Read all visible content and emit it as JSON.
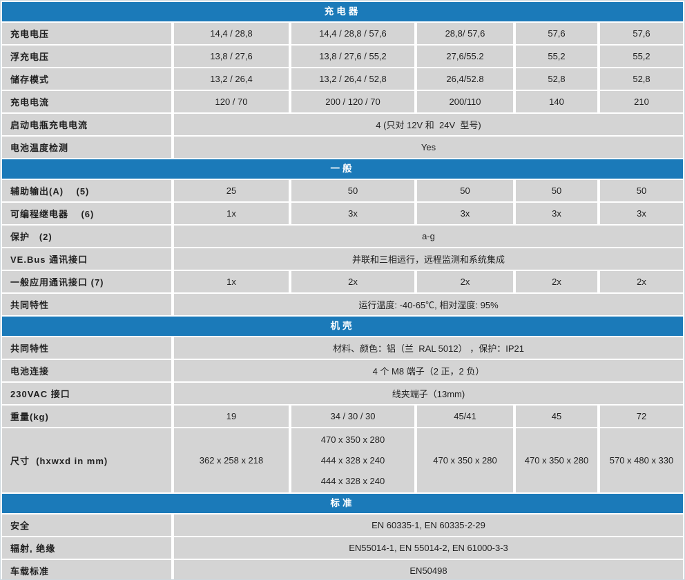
{
  "colors": {
    "header_bg": "#1b7ab9",
    "header_text": "#ffffff",
    "cell_bg": "#d4d4d4",
    "text": "#1f1f1f"
  },
  "sections": [
    {
      "id": "charger",
      "title": "充电器",
      "rows": [
        {
          "label": "充电电压",
          "values": [
            "14,4 / 28,8",
            "14,4 / 28,8 / 57,6",
            "28,8/ 57,6",
            "57,6",
            "57,6"
          ]
        },
        {
          "label": "浮充电压",
          "values": [
            "13,8 / 27,6",
            "13,8 / 27,6 / 55,2",
            "27,6/55.2",
            "55,2",
            "55,2"
          ]
        },
        {
          "label": "储存模式",
          "values": [
            "13,2 / 26,4",
            "13,2 / 26,4 / 52,8",
            "26,4/52.8",
            "52,8",
            "52,8"
          ]
        },
        {
          "label": "充电电流",
          "values": [
            "120 / 70",
            "200 / 120 / 70",
            "200/110",
            "140",
            "210"
          ]
        },
        {
          "label": "启动电瓶充电电流",
          "span": "4 (只对 12V 和  24V  型号)"
        },
        {
          "label": "电池温度检测",
          "span": "Yes"
        }
      ]
    },
    {
      "id": "general",
      "title": "一般",
      "rows": [
        {
          "label": "辅助输出(A)    (5)",
          "values": [
            "25",
            "50",
            "50",
            "50",
            "50"
          ]
        },
        {
          "label": "可编程继电器    (6)",
          "values": [
            "1x",
            "3x",
            "3x",
            "3x",
            "3x"
          ]
        },
        {
          "label": "保护   (2)",
          "span": "a-g"
        },
        {
          "label": "VE.Bus 通讯接口",
          "span": "并联和三相运行，远程监测和系统集成"
        },
        {
          "label": "一般应用通讯接口 (7)",
          "values": [
            "1x",
            "2x",
            "2x",
            "2x",
            "2x"
          ]
        },
        {
          "label": "共同特性",
          "span": "运行温度: -40-65℃, 相对湿度: 95%"
        }
      ]
    },
    {
      "id": "enclosure",
      "title": "机壳",
      "rows": [
        {
          "label": "共同特性",
          "span": "材料、颜色：铝（兰  RAL 5012） ，保护：IP21"
        },
        {
          "label": "电池连接",
          "span": "4 个 M8 端子（2 正，2 负）"
        },
        {
          "label": "230VAC 接口",
          "span": "线夹端子（13mm)"
        },
        {
          "label": "重量(kg)",
          "values": [
            "19",
            "34 / 30 / 30",
            "45/41",
            "45",
            "72"
          ]
        },
        {
          "label": "尺寸  (hxwxd in mm)",
          "tall": true,
          "values": [
            "362 x 258 x 218",
            [
              "470 x 350 x 280",
              "444 x 328 x 240",
              "444 x 328 x 240"
            ],
            "470 x 350 x 280",
            "470 x 350 x 280",
            "570 x 480 x 330"
          ]
        }
      ]
    },
    {
      "id": "standards",
      "title": "标准",
      "rows": [
        {
          "label": "安全",
          "span": "EN 60335-1, EN 60335-2-29"
        },
        {
          "label": "辐射, 绝缘",
          "span": "EN55014-1, EN 55014-2, EN 61000-3-3"
        },
        {
          "label": "车载标准",
          "span": "EN50498"
        }
      ]
    }
  ]
}
